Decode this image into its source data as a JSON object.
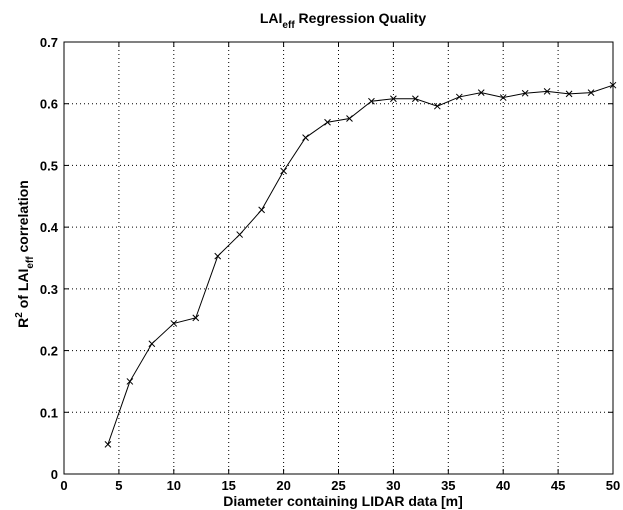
{
  "chart_data": {
    "type": "line",
    "title": {
      "main": "LAI",
      "sub": "eff",
      "rest": " Regression Quality"
    },
    "xlabel": "Diameter containing LIDAR data [m]",
    "ylabel": {
      "part1": "R",
      "sup": "2",
      "part2": " of LAI",
      "sub": "eff",
      "part3": " correlation"
    },
    "xlim": [
      0,
      50
    ],
    "ylim": [
      0,
      0.7
    ],
    "xticks": [
      0,
      5,
      10,
      15,
      20,
      25,
      30,
      35,
      40,
      45,
      50
    ],
    "yticks": [
      0,
      0.1,
      0.2,
      0.3,
      0.4,
      0.5,
      0.6,
      0.7
    ],
    "ytick_labels": [
      "0",
      "0.1",
      "0.2",
      "0.3",
      "0.4",
      "0.5",
      "0.6",
      "0.7"
    ],
    "grid": true,
    "marker": "x",
    "line_color": "#000000",
    "series": [
      {
        "x": [
          4,
          6,
          8,
          10,
          12,
          14,
          16,
          18,
          20,
          22,
          24,
          26,
          28,
          30,
          32,
          34,
          36,
          38,
          40,
          42,
          44,
          46,
          48,
          50
        ],
        "values": [
          0.048,
          0.15,
          0.211,
          0.244,
          0.253,
          0.353,
          0.388,
          0.428,
          0.491,
          0.545,
          0.57,
          0.576,
          0.604,
          0.608,
          0.608,
          0.596,
          0.611,
          0.618,
          0.61,
          0.617,
          0.62,
          0.616,
          0.618,
          0.63
        ]
      }
    ]
  }
}
